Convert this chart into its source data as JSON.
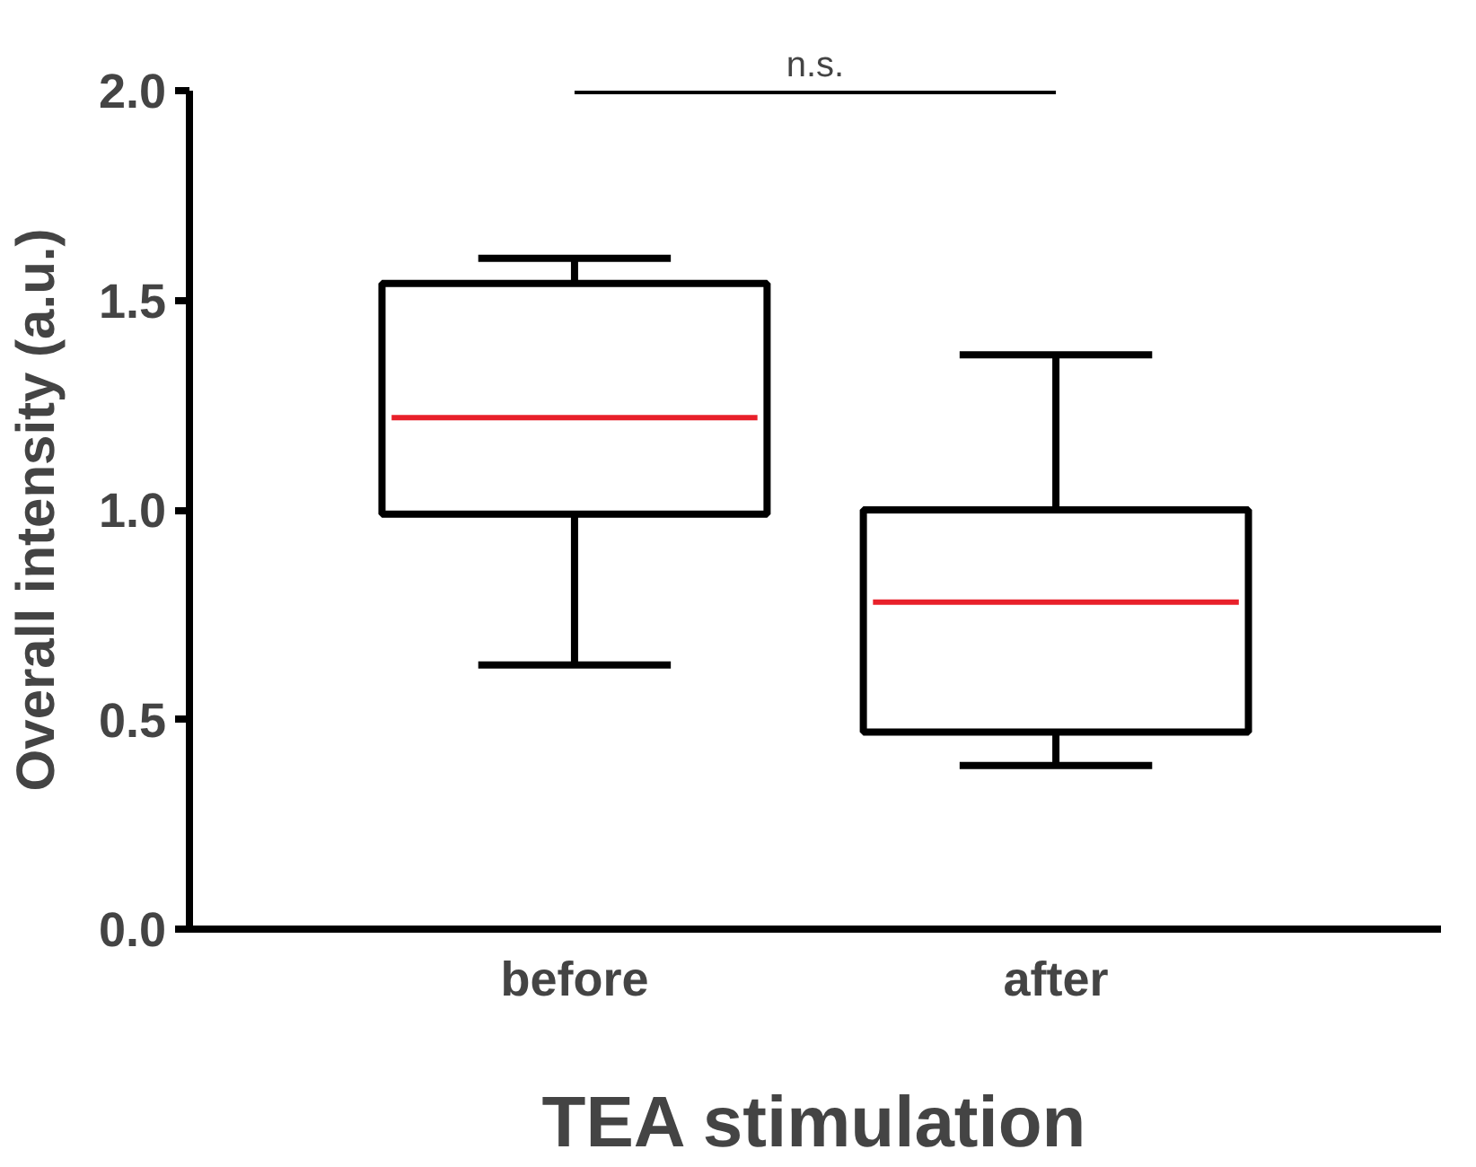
{
  "chart_data": {
    "type": "box",
    "xlabel": "TEA stimulation",
    "ylabel": "Overall intensity (a.u.)",
    "categories": [
      "before",
      "after"
    ],
    "series": [
      {
        "color": "#000000",
        "boxes": [
          {
            "low": 0.63,
            "q1": 0.99,
            "median": 1.22,
            "q3": 1.54,
            "high": 1.6
          },
          {
            "low": 0.39,
            "q1": 0.47,
            "median": 0.78,
            "q3": 1.0,
            "high": 1.37
          }
        ]
      }
    ],
    "ylim": [
      0,
      2.0
    ],
    "yticks": [
      {
        "value": 0,
        "label": "0.0"
      },
      {
        "value": 0.5,
        "label": "0.5"
      },
      {
        "value": 1.0,
        "label": "1.0"
      },
      {
        "value": 1.5,
        "label": "1.5"
      },
      {
        "value": 2.0,
        "label": "2.0"
      }
    ],
    "ref_lines": [
      {
        "axis": "y",
        "value": 2.0,
        "label": "n.s.",
        "color": "#000000"
      }
    ],
    "grid": false
  }
}
